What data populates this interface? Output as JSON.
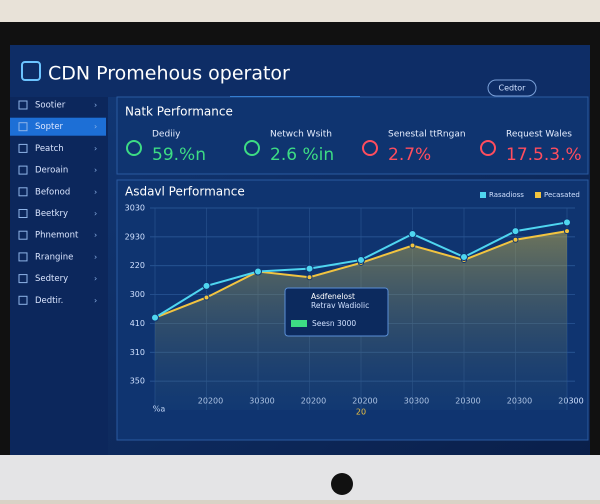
{
  "app": {
    "title": "CDN Promehous operator",
    "button": "Cedtor"
  },
  "sidebar": {
    "items": [
      "Sootier",
      "Sopter",
      "Peatch",
      "Deroain",
      "Befonod",
      "Beetkry",
      "Phnemont",
      "Rrangine",
      "Sedtery",
      "Dedtir."
    ],
    "active": 1
  },
  "metrics": {
    "title": "Natk Performance",
    "items": [
      {
        "label": "Dediiy",
        "value": "59.%n",
        "color": "#3ddc84"
      },
      {
        "label": "Netwch Wsith",
        "value": "2.6 %in",
        "color": "#3ddc84"
      },
      {
        "label": "Senestal ttRngan",
        "value": "2.7%",
        "color": "#ff4d5e"
      },
      {
        "label": "Request Wales",
        "value": "17.5.3.%",
        "color": "#ff4d5e"
      }
    ]
  },
  "chart_data": {
    "type": "line",
    "title": "Asdavl Performance",
    "categories": [
      "%a",
      "20200",
      "30300",
      "20200",
      "20200",
      "30300",
      "20300",
      "20300",
      "20300"
    ],
    "x_sublabel": "20",
    "series": [
      {
        "name": "Rasadioss",
        "color": "#4fd6f0",
        "values": [
          3.2,
          4.3,
          4.8,
          4.9,
          5.2,
          6.1,
          5.3,
          6.2,
          6.5
        ]
      },
      {
        "name": "Pecasated",
        "color": "#f2c440",
        "values": [
          3.2,
          3.9,
          4.8,
          4.6,
          5.1,
          5.7,
          5.2,
          5.9,
          6.2
        ]
      }
    ],
    "ylim": [
      0,
      7
    ],
    "yticks": [
      {
        "value": 1,
        "label": "350"
      },
      {
        "value": 2,
        "label": "310"
      },
      {
        "value": 3,
        "label": "410"
      },
      {
        "value": 4,
        "label": "300"
      },
      {
        "value": 5,
        "label": "220"
      },
      {
        "value": 6,
        "label": "2930"
      },
      {
        "value": 7,
        "label": "3030"
      }
    ],
    "grid": true,
    "tooltip": {
      "title": "Asdfenelost",
      "subtitle": "Retrav Wadiolic",
      "value": "Seesn 3000"
    }
  }
}
